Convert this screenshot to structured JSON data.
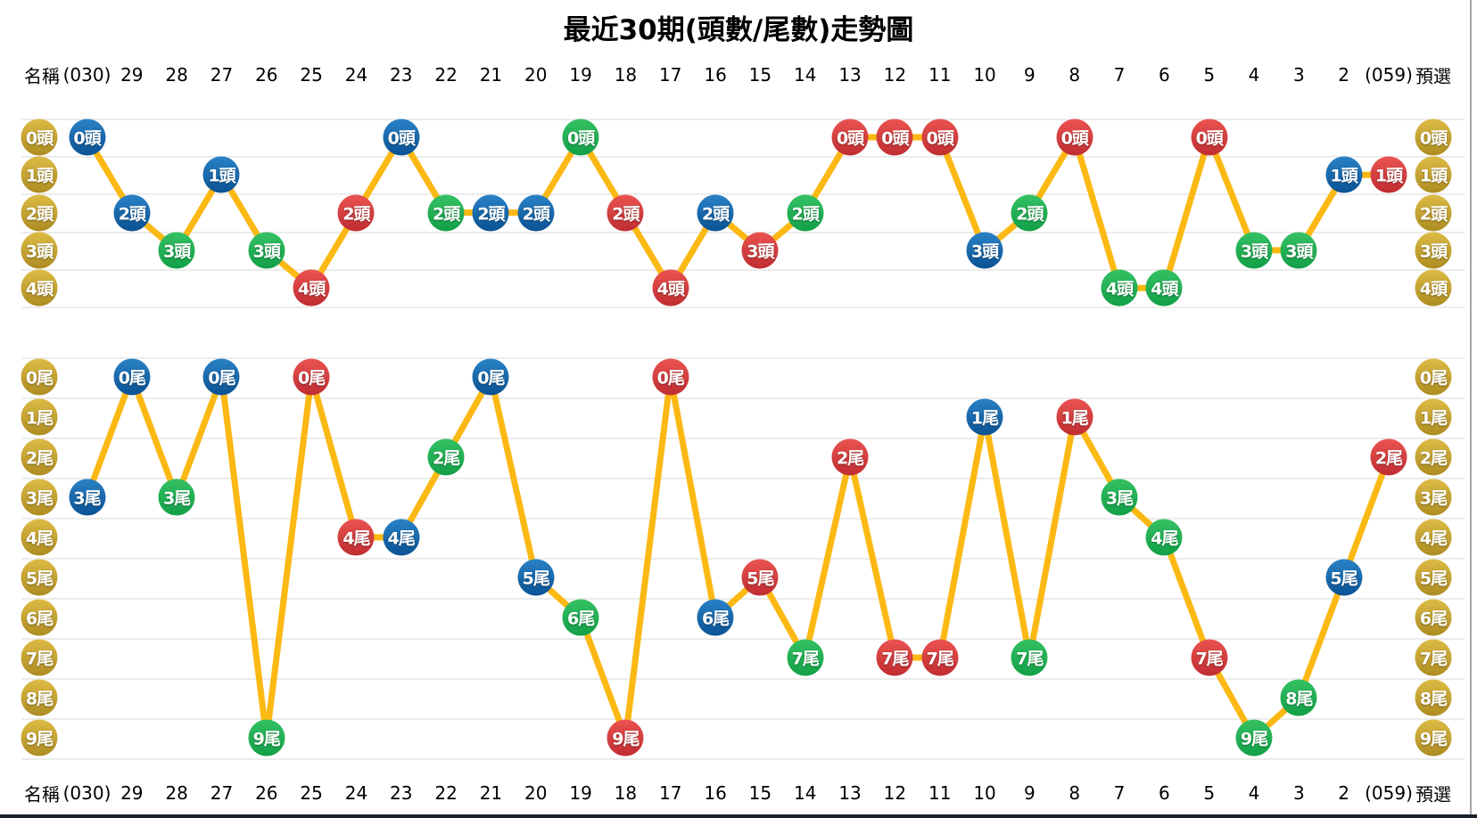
{
  "title": "最近30期(頭數/尾數)走勢圖",
  "header": {
    "name_label": "名稱",
    "columns": [
      "(030)",
      "29",
      "28",
      "27",
      "26",
      "25",
      "24",
      "23",
      "22",
      "21",
      "20",
      "19",
      "18",
      "17",
      "16",
      "15",
      "14",
      "13",
      "12",
      "11",
      "10",
      "9",
      "8",
      "7",
      "6",
      "5",
      "4",
      "3",
      "2",
      "(059)"
    ],
    "preselect_label": "預選"
  },
  "palette": {
    "blue": {
      "top": "#2a82c6",
      "bottom": "#0a5294"
    },
    "green": {
      "top": "#35c063",
      "bottom": "#12a047"
    },
    "red": {
      "top": "#ea5350",
      "bottom": "#c02d31"
    },
    "gold": {
      "top": "#ddbb45",
      "bottom": "#ad8c22"
    },
    "line": "#fcb813",
    "grid": "#ececec",
    "border_right": "#a6a6a6",
    "border_bottom": "#17202b"
  },
  "chart_data": [
    {
      "type": "line",
      "name": "head-trend",
      "unit_suffix": "頭",
      "row_labels": [
        "0頭",
        "1頭",
        "2頭",
        "3頭",
        "4頭"
      ],
      "categories": [
        "(030)",
        "29",
        "28",
        "27",
        "26",
        "25",
        "24",
        "23",
        "22",
        "21",
        "20",
        "19",
        "18",
        "17",
        "16",
        "15",
        "14",
        "13",
        "12",
        "11",
        "10",
        "9",
        "8",
        "7",
        "6",
        "5",
        "4",
        "3",
        "2",
        "(059)"
      ],
      "values": [
        0,
        2,
        3,
        1,
        3,
        4,
        2,
        0,
        2,
        2,
        2,
        0,
        2,
        4,
        2,
        3,
        2,
        0,
        0,
        0,
        3,
        2,
        0,
        4,
        4,
        0,
        3,
        3,
        1,
        1
      ],
      "point_colors": [
        "blue",
        "blue",
        "green",
        "blue",
        "green",
        "red",
        "red",
        "blue",
        "green",
        "blue",
        "blue",
        "green",
        "red",
        "red",
        "blue",
        "red",
        "green",
        "red",
        "red",
        "red",
        "blue",
        "green",
        "red",
        "green",
        "green",
        "red",
        "green",
        "green",
        "blue",
        "red"
      ],
      "ylim": [
        0,
        4
      ],
      "grid": true,
      "legend": "none"
    },
    {
      "type": "line",
      "name": "tail-trend",
      "unit_suffix": "尾",
      "row_labels": [
        "0尾",
        "1尾",
        "2尾",
        "3尾",
        "4尾",
        "5尾",
        "6尾",
        "7尾",
        "8尾",
        "9尾"
      ],
      "categories": [
        "(030)",
        "29",
        "28",
        "27",
        "26",
        "25",
        "24",
        "23",
        "22",
        "21",
        "20",
        "19",
        "18",
        "17",
        "16",
        "15",
        "14",
        "13",
        "12",
        "11",
        "10",
        "9",
        "8",
        "7",
        "6",
        "5",
        "4",
        "3",
        "2",
        "(059)"
      ],
      "values": [
        3,
        0,
        3,
        0,
        9,
        0,
        4,
        4,
        2,
        0,
        5,
        6,
        9,
        0,
        6,
        5,
        7,
        2,
        7,
        7,
        1,
        7,
        1,
        3,
        4,
        7,
        9,
        8,
        5,
        2
      ],
      "point_colors": [
        "blue",
        "blue",
        "green",
        "blue",
        "green",
        "red",
        "red",
        "blue",
        "green",
        "blue",
        "blue",
        "green",
        "red",
        "red",
        "blue",
        "red",
        "green",
        "red",
        "red",
        "red",
        "blue",
        "green",
        "red",
        "green",
        "green",
        "red",
        "green",
        "green",
        "blue",
        "red"
      ],
      "ylim": [
        0,
        9
      ],
      "grid": true,
      "legend": "none"
    }
  ]
}
